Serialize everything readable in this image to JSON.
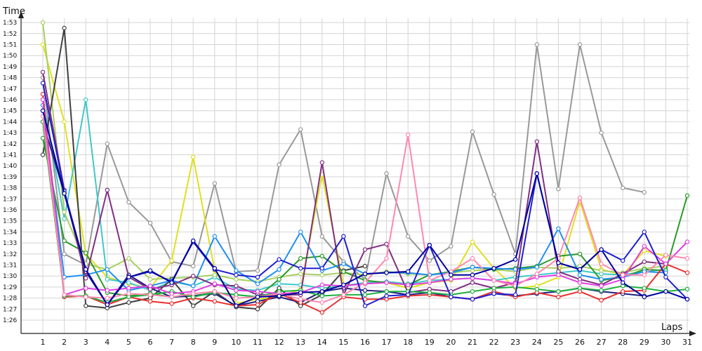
{
  "chart_data": {
    "type": "line",
    "xlabel": "Laps",
    "ylabel": "Time",
    "grid": true,
    "x": [
      1,
      2,
      3,
      4,
      5,
      6,
      7,
      8,
      9,
      10,
      11,
      12,
      13,
      14,
      15,
      16,
      17,
      18,
      19,
      20,
      21,
      22,
      23,
      24,
      25,
      26,
      27,
      28,
      29,
      30,
      31
    ],
    "y_ticks": [
      "1:26",
      "1:27",
      "1:28",
      "1:29",
      "1:30",
      "1:31",
      "1:32",
      "1:33",
      "1:34",
      "1:35",
      "1:36",
      "1:37",
      "1:38",
      "1:39",
      "1:40",
      "1:41",
      "1:42",
      "1:43",
      "1:44",
      "1:45",
      "1:46",
      "1:47",
      "1:48",
      "1:49",
      "1:50",
      "1:51",
      "1:52",
      "1:53"
    ],
    "ylim_seconds": [
      85,
      114
    ],
    "series": [
      {
        "color": "#999999",
        "values": [
          108,
          92,
          91,
          102,
          96.7,
          94.8,
          91.3,
          90.9,
          98.4,
          90.4,
          90.5,
          100.1,
          103.3,
          93.6,
          91.3,
          89.7,
          99.3,
          93.6,
          91.4,
          92.7,
          103.1,
          97.4,
          92,
          111,
          97.9,
          111,
          103,
          98,
          97.6,
          null,
          null
        ]
      },
      {
        "color": "#e0e020",
        "values": [
          111,
          104,
          92,
          89.9,
          89.3,
          88.9,
          91.4,
          100.8,
          90.5,
          87.5,
          87.9,
          88.1,
          88.8,
          99.2,
          89.2,
          89.3,
          89.4,
          88.9,
          89.4,
          89.6,
          93.1,
          90.7,
          88.9,
          89.1,
          89.9,
          96.8,
          90.6,
          90.1,
          92.3,
          91.8,
          null
        ]
      },
      {
        "color": "#40c8c8",
        "values": [
          106,
          95.2,
          106,
          89.7,
          89.4,
          88.7,
          89.5,
          89.1,
          89.9,
          88.8,
          88.7,
          89.3,
          89.2,
          88.9,
          89.1,
          89.4,
          89.5,
          89.3,
          89.6,
          89.7,
          89.8,
          89.6,
          89.9,
          90.1,
          90.3,
          90.5,
          90.2,
          90.1,
          90.4,
          90.6,
          null
        ]
      },
      {
        "color": "#a8d060",
        "values": [
          113,
          95.8,
          91.1,
          90.6,
          91.6,
          89.7,
          89.8,
          89.9,
          90.1,
          89.7,
          89.5,
          89.9,
          90.2,
          90.1,
          90.3,
          90.1,
          90.4,
          90.2,
          90.1,
          90.3,
          90.5,
          90.6,
          90.4,
          90.8,
          90.7,
          90.9,
          90.5,
          90.3,
          90.7,
          90.9,
          null
        ]
      },
      {
        "color": "#404040",
        "values": [
          101,
          112.5,
          87.3,
          87.1,
          87.6,
          88,
          89.7,
          87.3,
          88.6,
          87.2,
          87,
          88.9,
          87.3,
          88.3,
          90.5,
          90.9,
          null,
          null,
          null,
          null,
          null,
          null,
          null,
          null,
          null,
          null,
          null,
          null,
          null,
          null,
          null
        ]
      },
      {
        "color": "#2a9a2a",
        "values": [
          102.5,
          93.2,
          92.1,
          88.5,
          88.2,
          88.4,
          88.1,
          88.2,
          88.5,
          88.3,
          88.1,
          89.7,
          91.6,
          91.8,
          90.4,
          89.6,
          89.4,
          89.2,
          90.1,
          90.4,
          90.8,
          90.6,
          90.7,
          90.9,
          91.8,
          92,
          89.6,
          89.9,
          90.6,
          90.5,
          97.3
        ]
      },
      {
        "color": "#2090f0",
        "values": [
          105.5,
          89.9,
          90.1,
          90.6,
          88.7,
          89.1,
          89.6,
          89.1,
          93.6,
          90.5,
          89.3,
          90.6,
          94,
          90.5,
          91.1,
          90.2,
          90.3,
          90.3,
          90.1,
          90.3,
          90.8,
          90.7,
          90.6,
          90.8,
          94.3,
          90.1,
          89.7,
          89.9,
          90.4,
          90.3,
          null
        ]
      },
      {
        "color": "#202080",
        "values": [
          104,
          97.5,
          90.4,
          87.4,
          90.1,
          88.9,
          88.1,
          88.2,
          88.4,
          87.3,
          87.7,
          88.1,
          87.6,
          88.6,
          88.9,
          88.7,
          88.6,
          88.3,
          88.5,
          88.1,
          87.9,
          88.4,
          88.2,
          88.4,
          88.6,
          88.9,
          88.6,
          88.4,
          88.2,
          null,
          null
        ]
      },
      {
        "color": "#803080",
        "values": [
          108.5,
          97.8,
          89.8,
          97.8,
          89.9,
          88.8,
          89.2,
          90,
          89.2,
          89.1,
          88.3,
          88.3,
          88.3,
          100.3,
          88.3,
          92.4,
          92.9,
          88.5,
          88.8,
          88.6,
          89.4,
          88.9,
          89.4,
          102.2,
          90.4,
          89.7,
          89.2,
          90.2,
          91.3,
          91.1,
          null
        ]
      },
      {
        "color": "#e83030",
        "values": [
          106.5,
          88.1,
          88.2,
          87.4,
          88.1,
          87.7,
          87.5,
          88,
          87.7,
          87.3,
          87.4,
          88.4,
          87.6,
          86.7,
          88.1,
          87.9,
          87.9,
          88.2,
          88.3,
          88.1,
          87.9,
          88.6,
          88.1,
          88.5,
          88.1,
          88.6,
          87.8,
          88.6,
          88.7,
          91.1,
          90.3
        ]
      },
      {
        "color": "#20b040",
        "values": [
          104,
          88.2,
          88.2,
          87.6,
          88.1,
          88.3,
          88.6,
          88.1,
          88.5,
          88.3,
          88.1,
          88.6,
          88.7,
          88.2,
          88.3,
          88.3,
          88.6,
          88.6,
          88.5,
          88.3,
          88.6,
          88.9,
          89,
          88.8,
          88.6,
          88.9,
          88.7,
          89.1,
          88.9,
          88.6,
          88.8
        ]
      },
      {
        "color": "#e040e0",
        "values": [
          106,
          88.3,
          88.9,
          88.7,
          88.9,
          89.1,
          88.4,
          88.6,
          89.3,
          88.7,
          88.6,
          88.4,
          88.5,
          89.2,
          89.1,
          89.3,
          89.4,
          89.2,
          89.4,
          89.7,
          89.8,
          89.6,
          89.3,
          89.9,
          90.1,
          89.4,
          89.1,
          89.7,
          92.7,
          91.1,
          93.1
        ]
      },
      {
        "color": "#ff88b0",
        "values": [
          104.5,
          88.3,
          88.1,
          88,
          88.4,
          88.3,
          88.1,
          88.4,
          88.6,
          88,
          88.1,
          88.4,
          87.9,
          87.6,
          88.3,
          89.4,
          91.6,
          102.8,
          89.6,
          90.4,
          91.6,
          89.6,
          89.1,
          90.2,
          91.6,
          97.1,
          91.1,
          90.1,
          90.1,
          91.9,
          91.6
        ]
      },
      {
        "color": "#2020d0",
        "values": [
          107.5,
          97.7,
          90.6,
          87.4,
          89.9,
          90.4,
          89.5,
          93.1,
          90.6,
          90.1,
          89.9,
          91.5,
          90.7,
          90.7,
          93.6,
          87.3,
          88.2,
          88.3,
          92.8,
          88.1,
          87.9,
          88.4,
          88.3,
          99.3,
          91.2,
          90.6,
          92.4,
          91.4,
          94,
          89.9,
          87.9
        ]
      },
      {
        "color": "#0000a0",
        "values": [
          105,
          97.5,
          90.6,
          87.4,
          89.9,
          90.5,
          89.4,
          93.2,
          90.7,
          87.3,
          88.1,
          88.2,
          88.5,
          88.6,
          89.2,
          90.2,
          90.3,
          90.4,
          92.8,
          90.1,
          90.1,
          90.7,
          91.5,
          99.3,
          91.2,
          90.6,
          92.4,
          89.4,
          88.1,
          88.6,
          87.9
        ]
      }
    ]
  }
}
